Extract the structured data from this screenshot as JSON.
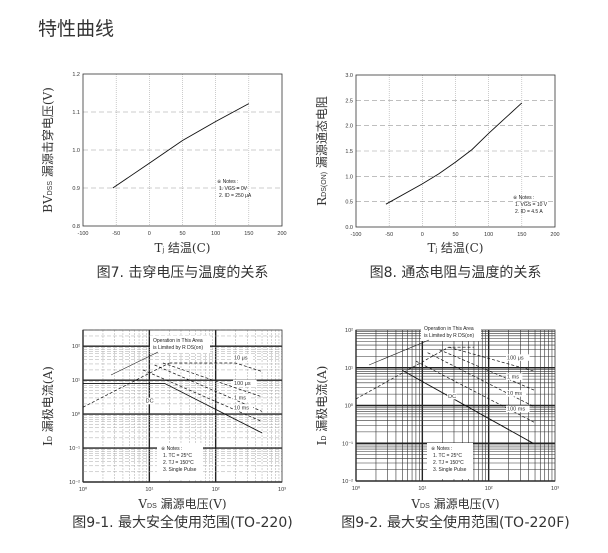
{
  "heading": "特性曲线",
  "chart_data": [
    {
      "type": "line",
      "caption": "图7. 击穿电压与温度的关系",
      "xlabel": {
        "main": "T",
        "sub": "j",
        "rest": " 结温(C)"
      },
      "ylabel": {
        "main": "BV",
        "sub": "DSS",
        "rest": " 漏源击穿电压(V)"
      },
      "xscale": "linear",
      "yscale": "linear",
      "xlim": [
        -100,
        200
      ],
      "ylim": [
        0.8,
        1.2
      ],
      "xticks": [
        -100,
        -50,
        0,
        50,
        100,
        150,
        200
      ],
      "xtick_labels": [
        "-100",
        "-50",
        "0",
        "50",
        "100",
        "150",
        "200"
      ],
      "yticks": [
        0.8,
        0.9,
        1.0,
        1.1,
        1.2
      ],
      "ytick_labels": [
        "0.8",
        "0.9",
        "1.0",
        "1.1",
        "1.2"
      ],
      "grid": true,
      "notes": [
        "※ Notes :",
        "1. VGS = 0V",
        "2. ID = 250 μA"
      ],
      "series": [
        {
          "style": "solid",
          "points": [
            [
              -55,
              0.9
            ],
            [
              0,
              0.965
            ],
            [
              25,
              0.995
            ],
            [
              50,
              1.025
            ],
            [
              100,
              1.075
            ],
            [
              150,
              1.122
            ]
          ]
        }
      ]
    },
    {
      "type": "line",
      "caption": "图8. 通态电阻与温度的关系",
      "xlabel": {
        "main": "T",
        "sub": "j",
        "rest": " 结温(C)"
      },
      "ylabel": {
        "main": "R",
        "sub": "DS(ON)",
        "rest": " 漏源通态电阻"
      },
      "xscale": "linear",
      "yscale": "linear",
      "xlim": [
        -100,
        200
      ],
      "ylim": [
        0.0,
        3.0
      ],
      "xticks": [
        -100,
        -50,
        0,
        50,
        100,
        150,
        200
      ],
      "xtick_labels": [
        "-100",
        "-50",
        "0",
        "50",
        "100",
        "150",
        "200"
      ],
      "yticks": [
        0.0,
        0.5,
        1.0,
        1.5,
        2.0,
        2.5,
        3.0
      ],
      "ytick_labels": [
        "0.0",
        "0.5",
        "1.0",
        "1.5",
        "2.0",
        "2.5",
        "3.0"
      ],
      "grid": true,
      "notes": [
        "※ Notes :",
        "1. VGS = 10 V",
        "2. ID = 4.5 A"
      ],
      "series": [
        {
          "style": "solid",
          "points": [
            [
              -55,
              0.45
            ],
            [
              0,
              0.85
            ],
            [
              25,
              1.05
            ],
            [
              50,
              1.28
            ],
            [
              75,
              1.53
            ],
            [
              100,
              1.85
            ],
            [
              125,
              2.15
            ],
            [
              150,
              2.45
            ]
          ]
        }
      ]
    },
    {
      "type": "line",
      "caption": "图9-1. 最大安全使用范围(TO-220)",
      "xlabel": {
        "main": "V",
        "sub": "DS",
        "rest": " 漏源电压(V)"
      },
      "ylabel": {
        "main": "I",
        "sub": "D",
        "rest": " 漏极电流(A)"
      },
      "xscale": "log",
      "yscale": "log",
      "xlim": [
        1,
        1000
      ],
      "ylim": [
        0.01,
        300
      ],
      "xticks": [
        1,
        10,
        100,
        1000
      ],
      "xtick_labels": [
        "10⁰",
        "10¹",
        "10²",
        "10³"
      ],
      "yticks": [
        0.01,
        0.1,
        1,
        10,
        100
      ],
      "ytick_labels": [
        "10⁻²",
        "10⁻¹",
        "10⁰",
        "10¹",
        "10²"
      ],
      "grid": true,
      "annotation": [
        "Operation in This Area",
        "is Limited by R DS(on)"
      ],
      "notes": [
        "※ Notes :",
        "1. TC = 25°C",
        "2. TJ = 150°C",
        "3. Single Pulse"
      ],
      "series": [
        {
          "name": "10 μs",
          "style": "dashed",
          "points": [
            [
              20,
              32
            ],
            [
              200,
              32
            ],
            [
              500,
              18
            ]
          ]
        },
        {
          "name": "100 μs",
          "style": "dashed",
          "points": [
            [
              16,
              32
            ],
            [
              500,
              3.2
            ]
          ]
        },
        {
          "name": "1 ms",
          "style": "dashed",
          "points": [
            [
              12,
              28
            ],
            [
              500,
              1.2
            ]
          ]
        },
        {
          "name": "10 ms",
          "style": "dashed",
          "points": [
            [
              8,
              20
            ],
            [
              500,
              0.6
            ]
          ]
        },
        {
          "name": "DC",
          "style": "solid",
          "points": [
            [
              1,
              8
            ],
            [
              17,
              8
            ],
            [
              500,
              0.28
            ]
          ]
        },
        {
          "name": "",
          "style": "dashed",
          "points": [
            [
              1,
              1.6
            ],
            [
              20,
              32
            ]
          ]
        }
      ]
    },
    {
      "type": "line",
      "caption": "图9-2. 最大安全使用范围(TO-220F)",
      "xlabel": {
        "main": "V",
        "sub": "DS",
        "rest": " 漏源电压(V)"
      },
      "ylabel": {
        "main": "I",
        "sub": "D",
        "rest": " 漏极电流(A)"
      },
      "xscale": "log",
      "yscale": "log",
      "xlim": [
        1,
        1000
      ],
      "ylim": [
        0.01,
        100
      ],
      "xticks": [
        1,
        10,
        100,
        1000
      ],
      "xtick_labels": [
        "10⁰",
        "10¹",
        "10²",
        "10³"
      ],
      "yticks": [
        0.01,
        0.1,
        1,
        10,
        100
      ],
      "ytick_labels": [
        "10⁻²",
        "10⁻¹",
        "10⁰",
        "10¹",
        "10²"
      ],
      "grid": true,
      "annotation": [
        "Operation in This Area",
        "is Limited by R DS(on)"
      ],
      "notes": [
        "※ Notes :",
        "1. TC = 25°C",
        "2. TJ = 150°C",
        "3. Single Pulse"
      ],
      "series": [
        {
          "name": "100 μs",
          "style": "dashed",
          "points": [
            [
              25,
              35
            ],
            [
              500,
              8
            ]
          ]
        },
        {
          "name": "1 ms",
          "style": "dashed",
          "points": [
            [
              18,
              30
            ],
            [
              500,
              2.5
            ]
          ]
        },
        {
          "name": "10 ms",
          "style": "dashed",
          "points": [
            [
              12,
              25
            ],
            [
              500,
              0.9
            ]
          ]
        },
        {
          "name": "100 ms",
          "style": "dashed",
          "points": [
            [
              8,
              15
            ],
            [
              500,
              0.35
            ]
          ]
        },
        {
          "name": "DC",
          "style": "solid",
          "points": [
            [
              5,
              8.5
            ],
            [
              470,
              0.1
            ]
          ]
        },
        {
          "name": "",
          "style": "dashed",
          "points": [
            [
              1,
              1.5
            ],
            [
              25,
              35
            ],
            [
              60,
              35
            ]
          ]
        }
      ]
    }
  ]
}
